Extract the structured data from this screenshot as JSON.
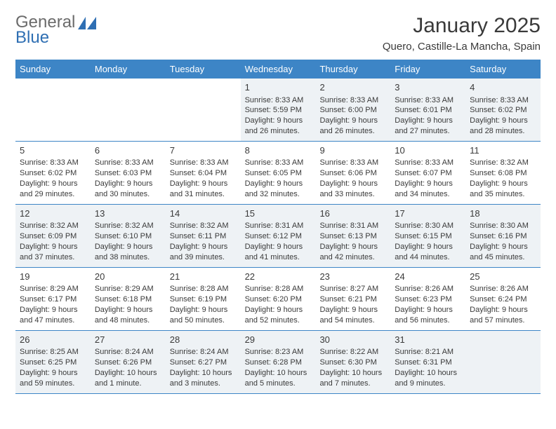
{
  "brand": {
    "name_top": "General",
    "name_bottom": "Blue"
  },
  "title": "January 2025",
  "location": "Quero, Castille-La Mancha, Spain",
  "colors": {
    "header_bg": "#3d85c6",
    "header_text": "#ffffff",
    "shade_bg": "#eef2f5",
    "rule": "#3d85c6",
    "body_text": "#3a3a3a",
    "logo_gray": "#6b6b6b",
    "logo_blue": "#2f6fb3"
  },
  "day_names": [
    "Sunday",
    "Monday",
    "Tuesday",
    "Wednesday",
    "Thursday",
    "Friday",
    "Saturday"
  ],
  "weeks": [
    [
      {
        "blank": true
      },
      {
        "blank": true
      },
      {
        "blank": true
      },
      {
        "day": "1",
        "sunrise": "Sunrise: 8:33 AM",
        "sunset": "Sunset: 5:59 PM",
        "daylight1": "Daylight: 9 hours",
        "daylight2": "and 26 minutes."
      },
      {
        "day": "2",
        "sunrise": "Sunrise: 8:33 AM",
        "sunset": "Sunset: 6:00 PM",
        "daylight1": "Daylight: 9 hours",
        "daylight2": "and 26 minutes."
      },
      {
        "day": "3",
        "sunrise": "Sunrise: 8:33 AM",
        "sunset": "Sunset: 6:01 PM",
        "daylight1": "Daylight: 9 hours",
        "daylight2": "and 27 minutes."
      },
      {
        "day": "4",
        "sunrise": "Sunrise: 8:33 AM",
        "sunset": "Sunset: 6:02 PM",
        "daylight1": "Daylight: 9 hours",
        "daylight2": "and 28 minutes."
      }
    ],
    [
      {
        "day": "5",
        "sunrise": "Sunrise: 8:33 AM",
        "sunset": "Sunset: 6:02 PM",
        "daylight1": "Daylight: 9 hours",
        "daylight2": "and 29 minutes."
      },
      {
        "day": "6",
        "sunrise": "Sunrise: 8:33 AM",
        "sunset": "Sunset: 6:03 PM",
        "daylight1": "Daylight: 9 hours",
        "daylight2": "and 30 minutes."
      },
      {
        "day": "7",
        "sunrise": "Sunrise: 8:33 AM",
        "sunset": "Sunset: 6:04 PM",
        "daylight1": "Daylight: 9 hours",
        "daylight2": "and 31 minutes."
      },
      {
        "day": "8",
        "sunrise": "Sunrise: 8:33 AM",
        "sunset": "Sunset: 6:05 PM",
        "daylight1": "Daylight: 9 hours",
        "daylight2": "and 32 minutes."
      },
      {
        "day": "9",
        "sunrise": "Sunrise: 8:33 AM",
        "sunset": "Sunset: 6:06 PM",
        "daylight1": "Daylight: 9 hours",
        "daylight2": "and 33 minutes."
      },
      {
        "day": "10",
        "sunrise": "Sunrise: 8:33 AM",
        "sunset": "Sunset: 6:07 PM",
        "daylight1": "Daylight: 9 hours",
        "daylight2": "and 34 minutes."
      },
      {
        "day": "11",
        "sunrise": "Sunrise: 8:32 AM",
        "sunset": "Sunset: 6:08 PM",
        "daylight1": "Daylight: 9 hours",
        "daylight2": "and 35 minutes."
      }
    ],
    [
      {
        "day": "12",
        "sunrise": "Sunrise: 8:32 AM",
        "sunset": "Sunset: 6:09 PM",
        "daylight1": "Daylight: 9 hours",
        "daylight2": "and 37 minutes."
      },
      {
        "day": "13",
        "sunrise": "Sunrise: 8:32 AM",
        "sunset": "Sunset: 6:10 PM",
        "daylight1": "Daylight: 9 hours",
        "daylight2": "and 38 minutes."
      },
      {
        "day": "14",
        "sunrise": "Sunrise: 8:32 AM",
        "sunset": "Sunset: 6:11 PM",
        "daylight1": "Daylight: 9 hours",
        "daylight2": "and 39 minutes."
      },
      {
        "day": "15",
        "sunrise": "Sunrise: 8:31 AM",
        "sunset": "Sunset: 6:12 PM",
        "daylight1": "Daylight: 9 hours",
        "daylight2": "and 41 minutes."
      },
      {
        "day": "16",
        "sunrise": "Sunrise: 8:31 AM",
        "sunset": "Sunset: 6:13 PM",
        "daylight1": "Daylight: 9 hours",
        "daylight2": "and 42 minutes."
      },
      {
        "day": "17",
        "sunrise": "Sunrise: 8:30 AM",
        "sunset": "Sunset: 6:15 PM",
        "daylight1": "Daylight: 9 hours",
        "daylight2": "and 44 minutes."
      },
      {
        "day": "18",
        "sunrise": "Sunrise: 8:30 AM",
        "sunset": "Sunset: 6:16 PM",
        "daylight1": "Daylight: 9 hours",
        "daylight2": "and 45 minutes."
      }
    ],
    [
      {
        "day": "19",
        "sunrise": "Sunrise: 8:29 AM",
        "sunset": "Sunset: 6:17 PM",
        "daylight1": "Daylight: 9 hours",
        "daylight2": "and 47 minutes."
      },
      {
        "day": "20",
        "sunrise": "Sunrise: 8:29 AM",
        "sunset": "Sunset: 6:18 PM",
        "daylight1": "Daylight: 9 hours",
        "daylight2": "and 48 minutes."
      },
      {
        "day": "21",
        "sunrise": "Sunrise: 8:28 AM",
        "sunset": "Sunset: 6:19 PM",
        "daylight1": "Daylight: 9 hours",
        "daylight2": "and 50 minutes."
      },
      {
        "day": "22",
        "sunrise": "Sunrise: 8:28 AM",
        "sunset": "Sunset: 6:20 PM",
        "daylight1": "Daylight: 9 hours",
        "daylight2": "and 52 minutes."
      },
      {
        "day": "23",
        "sunrise": "Sunrise: 8:27 AM",
        "sunset": "Sunset: 6:21 PM",
        "daylight1": "Daylight: 9 hours",
        "daylight2": "and 54 minutes."
      },
      {
        "day": "24",
        "sunrise": "Sunrise: 8:26 AM",
        "sunset": "Sunset: 6:23 PM",
        "daylight1": "Daylight: 9 hours",
        "daylight2": "and 56 minutes."
      },
      {
        "day": "25",
        "sunrise": "Sunrise: 8:26 AM",
        "sunset": "Sunset: 6:24 PM",
        "daylight1": "Daylight: 9 hours",
        "daylight2": "and 57 minutes."
      }
    ],
    [
      {
        "day": "26",
        "sunrise": "Sunrise: 8:25 AM",
        "sunset": "Sunset: 6:25 PM",
        "daylight1": "Daylight: 9 hours",
        "daylight2": "and 59 minutes."
      },
      {
        "day": "27",
        "sunrise": "Sunrise: 8:24 AM",
        "sunset": "Sunset: 6:26 PM",
        "daylight1": "Daylight: 10 hours",
        "daylight2": "and 1 minute."
      },
      {
        "day": "28",
        "sunrise": "Sunrise: 8:24 AM",
        "sunset": "Sunset: 6:27 PM",
        "daylight1": "Daylight: 10 hours",
        "daylight2": "and 3 minutes."
      },
      {
        "day": "29",
        "sunrise": "Sunrise: 8:23 AM",
        "sunset": "Sunset: 6:28 PM",
        "daylight1": "Daylight: 10 hours",
        "daylight2": "and 5 minutes."
      },
      {
        "day": "30",
        "sunrise": "Sunrise: 8:22 AM",
        "sunset": "Sunset: 6:30 PM",
        "daylight1": "Daylight: 10 hours",
        "daylight2": "and 7 minutes."
      },
      {
        "day": "31",
        "sunrise": "Sunrise: 8:21 AM",
        "sunset": "Sunset: 6:31 PM",
        "daylight1": "Daylight: 10 hours",
        "daylight2": "and 9 minutes."
      },
      {
        "blank": true
      }
    ]
  ]
}
